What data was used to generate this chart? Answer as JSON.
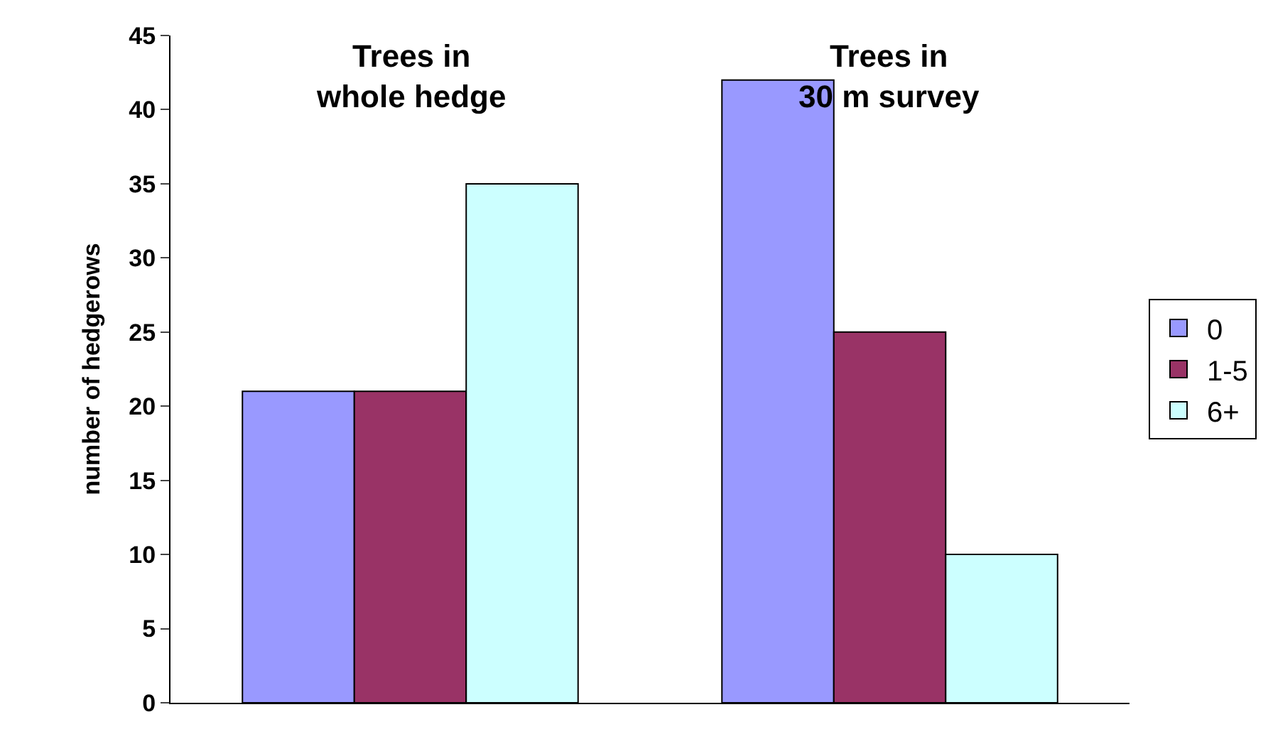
{
  "chart_data": {
    "type": "bar",
    "ylabel": "number of hedgerows",
    "categories": [
      "Trees in\nwhole hedge",
      "Trees in\n30 m survey"
    ],
    "series": [
      {
        "name": "0",
        "color": "#9999ff",
        "values": [
          21,
          42
        ]
      },
      {
        "name": "1-5",
        "color": "#993366",
        "values": [
          21,
          25
        ]
      },
      {
        "name": "6+",
        "color": "#ccffff",
        "values": [
          35,
          10
        ]
      }
    ],
    "ylim": [
      0,
      45
    ],
    "yticks": [
      0,
      5,
      10,
      15,
      20,
      25,
      30,
      35,
      40,
      45
    ],
    "legend": "right"
  }
}
